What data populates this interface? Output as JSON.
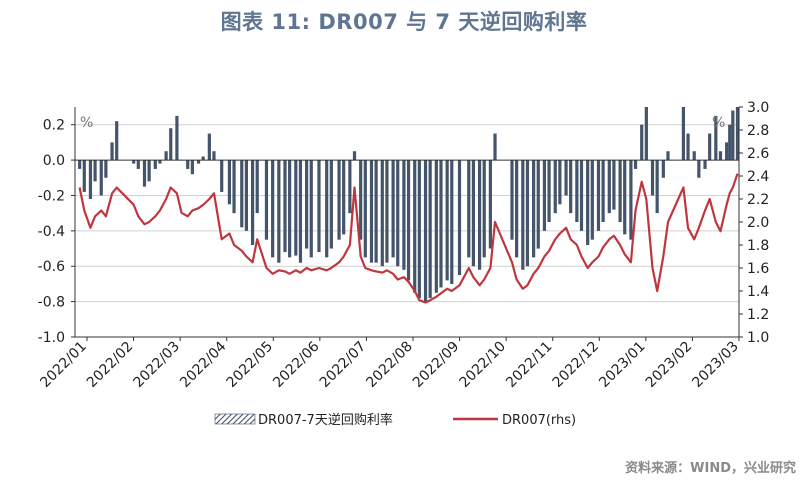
{
  "title": "图表 11: DR007 与 7 天逆回购利率",
  "source": "资料来源：WIND，兴业研究",
  "colors": {
    "bar": "#44546a",
    "line": "#c0363f",
    "grid": "#d0d0d0",
    "axis": "#333333"
  },
  "chart_data": {
    "type": "bar+line",
    "left_axis": {
      "unit": "%",
      "min": -1.0,
      "max": 0.3,
      "ticks": [
        0.2,
        0.0,
        -0.2,
        -0.4,
        -0.6,
        -0.8,
        -1.0
      ],
      "tick_labels": [
        "0.2",
        "0.0",
        "-0.2",
        "-0.4",
        "-0.6",
        "-0.8",
        "-1.0"
      ]
    },
    "right_axis": {
      "unit": "%",
      "min": 1.0,
      "max": 3.0,
      "ticks": [
        3.0,
        2.8,
        2.6,
        2.4,
        2.2,
        2.0,
        1.8,
        1.6,
        1.4,
        1.2,
        1.0
      ],
      "tick_labels": [
        "3.0",
        "2.8",
        "2.6",
        "2.4",
        "2.2",
        "2.0",
        "1.8",
        "1.6",
        "1.4",
        "1.2",
        "1.0"
      ]
    },
    "x_labels": [
      "2022/01",
      "2022/02",
      "2022/03",
      "2022/04",
      "2022/05",
      "2022/06",
      "2022/07",
      "2022/08",
      "2022/09",
      "2022/10",
      "2022/11",
      "2022/12",
      "2023/01",
      "2023/02",
      "2023/03"
    ],
    "x_range": [
      "2022-01-01",
      "2023-03-07"
    ],
    "grid": "horizontal",
    "legend_position": "bottom",
    "series": [
      {
        "name": "DR007-7天逆回购利率",
        "type": "bar",
        "axis": "left",
        "points": [
          [
            "2022-01-04",
            -0.05
          ],
          [
            "2022-01-07",
            -0.18
          ],
          [
            "2022-01-11",
            -0.22
          ],
          [
            "2022-01-14",
            -0.12
          ],
          [
            "2022-01-18",
            -0.2
          ],
          [
            "2022-01-21",
            -0.1
          ],
          [
            "2022-01-25",
            0.1
          ],
          [
            "2022-01-28",
            0.22
          ],
          [
            "2022-02-08",
            -0.02
          ],
          [
            "2022-02-11",
            -0.05
          ],
          [
            "2022-02-15",
            -0.15
          ],
          [
            "2022-02-18",
            -0.12
          ],
          [
            "2022-02-22",
            -0.05
          ],
          [
            "2022-02-25",
            -0.02
          ],
          [
            "2022-03-01",
            0.05
          ],
          [
            "2022-03-04",
            0.18
          ],
          [
            "2022-03-08",
            0.25
          ],
          [
            "2022-03-11",
            0.0
          ],
          [
            "2022-03-15",
            -0.05
          ],
          [
            "2022-03-18",
            -0.08
          ],
          [
            "2022-03-22",
            -0.02
          ],
          [
            "2022-03-25",
            0.02
          ],
          [
            "2022-03-29",
            0.15
          ],
          [
            "2022-04-01",
            0.05
          ],
          [
            "2022-04-06",
            -0.18
          ],
          [
            "2022-04-11",
            -0.25
          ],
          [
            "2022-04-14",
            -0.3
          ],
          [
            "2022-04-19",
            -0.38
          ],
          [
            "2022-04-22",
            -0.4
          ],
          [
            "2022-04-26",
            -0.48
          ],
          [
            "2022-04-29",
            -0.3
          ],
          [
            "2022-05-05",
            -0.45
          ],
          [
            "2022-05-09",
            -0.55
          ],
          [
            "2022-05-13",
            -0.58
          ],
          [
            "2022-05-17",
            -0.52
          ],
          [
            "2022-05-20",
            -0.55
          ],
          [
            "2022-05-24",
            -0.54
          ],
          [
            "2022-05-27",
            -0.58
          ],
          [
            "2022-05-31",
            -0.5
          ],
          [
            "2022-06-03",
            -0.55
          ],
          [
            "2022-06-08",
            -0.52
          ],
          [
            "2022-06-13",
            -0.55
          ],
          [
            "2022-06-16",
            -0.5
          ],
          [
            "2022-06-21",
            -0.45
          ],
          [
            "2022-06-24",
            -0.42
          ],
          [
            "2022-06-28",
            -0.3
          ],
          [
            "2022-07-01",
            0.05
          ],
          [
            "2022-07-05",
            -0.45
          ],
          [
            "2022-07-08",
            -0.55
          ],
          [
            "2022-07-12",
            -0.58
          ],
          [
            "2022-07-15",
            -0.58
          ],
          [
            "2022-07-19",
            -0.6
          ],
          [
            "2022-07-22",
            -0.58
          ],
          [
            "2022-07-26",
            -0.55
          ],
          [
            "2022-07-29",
            -0.6
          ],
          [
            "2022-08-02",
            -0.62
          ],
          [
            "2022-08-05",
            -0.68
          ],
          [
            "2022-08-09",
            -0.75
          ],
          [
            "2022-08-12",
            -0.78
          ],
          [
            "2022-08-16",
            -0.8
          ],
          [
            "2022-08-19",
            -0.78
          ],
          [
            "2022-08-23",
            -0.75
          ],
          [
            "2022-08-26",
            -0.72
          ],
          [
            "2022-08-30",
            -0.68
          ],
          [
            "2022-09-02",
            -0.7
          ],
          [
            "2022-09-07",
            -0.65
          ],
          [
            "2022-09-13",
            -0.55
          ],
          [
            "2022-09-16",
            -0.6
          ],
          [
            "2022-09-20",
            -0.62
          ],
          [
            "2022-09-23",
            -0.55
          ],
          [
            "2022-09-27",
            -0.5
          ],
          [
            "2022-09-30",
            0.15
          ],
          [
            "2022-10-11",
            -0.45
          ],
          [
            "2022-10-14",
            -0.55
          ],
          [
            "2022-10-18",
            -0.62
          ],
          [
            "2022-10-21",
            -0.6
          ],
          [
            "2022-10-25",
            -0.55
          ],
          [
            "2022-10-28",
            -0.5
          ],
          [
            "2022-11-01",
            -0.4
          ],
          [
            "2022-11-04",
            -0.35
          ],
          [
            "2022-11-08",
            -0.3
          ],
          [
            "2022-11-11",
            -0.25
          ],
          [
            "2022-11-15",
            -0.2
          ],
          [
            "2022-11-18",
            -0.3
          ],
          [
            "2022-11-22",
            -0.35
          ],
          [
            "2022-11-25",
            -0.4
          ],
          [
            "2022-11-29",
            -0.48
          ],
          [
            "2022-12-02",
            -0.45
          ],
          [
            "2022-12-06",
            -0.4
          ],
          [
            "2022-12-09",
            -0.35
          ],
          [
            "2022-12-13",
            -0.3
          ],
          [
            "2022-12-16",
            -0.28
          ],
          [
            "2022-12-20",
            -0.35
          ],
          [
            "2022-12-23",
            -0.42
          ],
          [
            "2022-12-27",
            -0.45
          ],
          [
            "2022-12-30",
            -0.05
          ],
          [
            "2023-01-03",
            0.2
          ],
          [
            "2023-01-06",
            0.3
          ],
          [
            "2023-01-10",
            -0.2
          ],
          [
            "2023-01-13",
            -0.3
          ],
          [
            "2023-01-17",
            -0.1
          ],
          [
            "2023-01-20",
            0.05
          ],
          [
            "2023-01-30",
            0.3
          ],
          [
            "2023-02-02",
            0.15
          ],
          [
            "2023-02-06",
            0.05
          ],
          [
            "2023-02-09",
            -0.1
          ],
          [
            "2023-02-13",
            -0.05
          ],
          [
            "2023-02-16",
            0.15
          ],
          [
            "2023-02-20",
            0.25
          ],
          [
            "2023-02-23",
            0.05
          ],
          [
            "2023-02-27",
            0.1
          ],
          [
            "2023-03-01",
            0.2
          ],
          [
            "2023-03-03",
            0.28
          ],
          [
            "2023-03-06",
            0.3
          ]
        ]
      },
      {
        "name": "DR007(rhs)",
        "type": "line",
        "axis": "right",
        "points": [
          [
            "2022-01-04",
            2.3
          ],
          [
            "2022-01-07",
            2.1
          ],
          [
            "2022-01-11",
            1.95
          ],
          [
            "2022-01-14",
            2.05
          ],
          [
            "2022-01-18",
            2.1
          ],
          [
            "2022-01-21",
            2.05
          ],
          [
            "2022-01-25",
            2.25
          ],
          [
            "2022-01-28",
            2.3
          ],
          [
            "2022-02-08",
            2.15
          ],
          [
            "2022-02-11",
            2.05
          ],
          [
            "2022-02-15",
            1.98
          ],
          [
            "2022-02-18",
            2.0
          ],
          [
            "2022-02-22",
            2.05
          ],
          [
            "2022-02-25",
            2.1
          ],
          [
            "2022-03-01",
            2.2
          ],
          [
            "2022-03-04",
            2.3
          ],
          [
            "2022-03-08",
            2.25
          ],
          [
            "2022-03-11",
            2.08
          ],
          [
            "2022-03-15",
            2.05
          ],
          [
            "2022-03-18",
            2.1
          ],
          [
            "2022-03-22",
            2.12
          ],
          [
            "2022-03-25",
            2.15
          ],
          [
            "2022-03-29",
            2.2
          ],
          [
            "2022-04-01",
            2.25
          ],
          [
            "2022-04-06",
            1.85
          ],
          [
            "2022-04-11",
            1.9
          ],
          [
            "2022-04-14",
            1.8
          ],
          [
            "2022-04-19",
            1.75
          ],
          [
            "2022-04-22",
            1.7
          ],
          [
            "2022-04-26",
            1.65
          ],
          [
            "2022-04-29",
            1.85
          ],
          [
            "2022-05-05",
            1.6
          ],
          [
            "2022-05-09",
            1.55
          ],
          [
            "2022-05-13",
            1.58
          ],
          [
            "2022-05-17",
            1.57
          ],
          [
            "2022-05-20",
            1.55
          ],
          [
            "2022-05-24",
            1.58
          ],
          [
            "2022-05-27",
            1.56
          ],
          [
            "2022-05-31",
            1.6
          ],
          [
            "2022-06-03",
            1.58
          ],
          [
            "2022-06-08",
            1.6
          ],
          [
            "2022-06-13",
            1.58
          ],
          [
            "2022-06-16",
            1.6
          ],
          [
            "2022-06-21",
            1.65
          ],
          [
            "2022-06-24",
            1.7
          ],
          [
            "2022-06-28",
            1.8
          ],
          [
            "2022-07-01",
            2.3
          ],
          [
            "2022-07-05",
            1.7
          ],
          [
            "2022-07-08",
            1.6
          ],
          [
            "2022-07-12",
            1.58
          ],
          [
            "2022-07-15",
            1.57
          ],
          [
            "2022-07-19",
            1.56
          ],
          [
            "2022-07-22",
            1.58
          ],
          [
            "2022-07-26",
            1.55
          ],
          [
            "2022-07-29",
            1.5
          ],
          [
            "2022-08-02",
            1.52
          ],
          [
            "2022-08-05",
            1.48
          ],
          [
            "2022-08-09",
            1.4
          ],
          [
            "2022-08-12",
            1.32
          ],
          [
            "2022-08-16",
            1.3
          ],
          [
            "2022-08-19",
            1.32
          ],
          [
            "2022-08-23",
            1.35
          ],
          [
            "2022-08-26",
            1.38
          ],
          [
            "2022-08-30",
            1.42
          ],
          [
            "2022-09-02",
            1.4
          ],
          [
            "2022-09-07",
            1.45
          ],
          [
            "2022-09-13",
            1.6
          ],
          [
            "2022-09-16",
            1.52
          ],
          [
            "2022-09-20",
            1.45
          ],
          [
            "2022-09-23",
            1.5
          ],
          [
            "2022-09-27",
            1.6
          ],
          [
            "2022-09-30",
            2.0
          ],
          [
            "2022-10-11",
            1.65
          ],
          [
            "2022-10-14",
            1.5
          ],
          [
            "2022-10-18",
            1.42
          ],
          [
            "2022-10-21",
            1.45
          ],
          [
            "2022-10-25",
            1.55
          ],
          [
            "2022-10-28",
            1.6
          ],
          [
            "2022-11-01",
            1.7
          ],
          [
            "2022-11-04",
            1.75
          ],
          [
            "2022-11-08",
            1.85
          ],
          [
            "2022-11-11",
            1.9
          ],
          [
            "2022-11-15",
            1.95
          ],
          [
            "2022-11-18",
            1.85
          ],
          [
            "2022-11-22",
            1.8
          ],
          [
            "2022-11-25",
            1.7
          ],
          [
            "2022-11-29",
            1.6
          ],
          [
            "2022-12-02",
            1.65
          ],
          [
            "2022-12-06",
            1.7
          ],
          [
            "2022-12-09",
            1.78
          ],
          [
            "2022-12-13",
            1.85
          ],
          [
            "2022-12-16",
            1.88
          ],
          [
            "2022-12-20",
            1.8
          ],
          [
            "2022-12-23",
            1.72
          ],
          [
            "2022-12-27",
            1.65
          ],
          [
            "2022-12-30",
            2.1
          ],
          [
            "2023-01-03",
            2.35
          ],
          [
            "2023-01-06",
            2.2
          ],
          [
            "2023-01-10",
            1.6
          ],
          [
            "2023-01-13",
            1.4
          ],
          [
            "2023-01-17",
            1.7
          ],
          [
            "2023-01-20",
            2.0
          ],
          [
            "2023-01-30",
            2.3
          ],
          [
            "2023-02-02",
            1.95
          ],
          [
            "2023-02-06",
            1.85
          ],
          [
            "2023-02-09",
            1.95
          ],
          [
            "2023-02-13",
            2.1
          ],
          [
            "2023-02-16",
            2.2
          ],
          [
            "2023-02-20",
            2.0
          ],
          [
            "2023-02-23",
            1.92
          ],
          [
            "2023-02-27",
            2.15
          ],
          [
            "2023-03-01",
            2.25
          ],
          [
            "2023-03-03",
            2.3
          ],
          [
            "2023-03-06",
            2.42
          ]
        ]
      }
    ]
  }
}
